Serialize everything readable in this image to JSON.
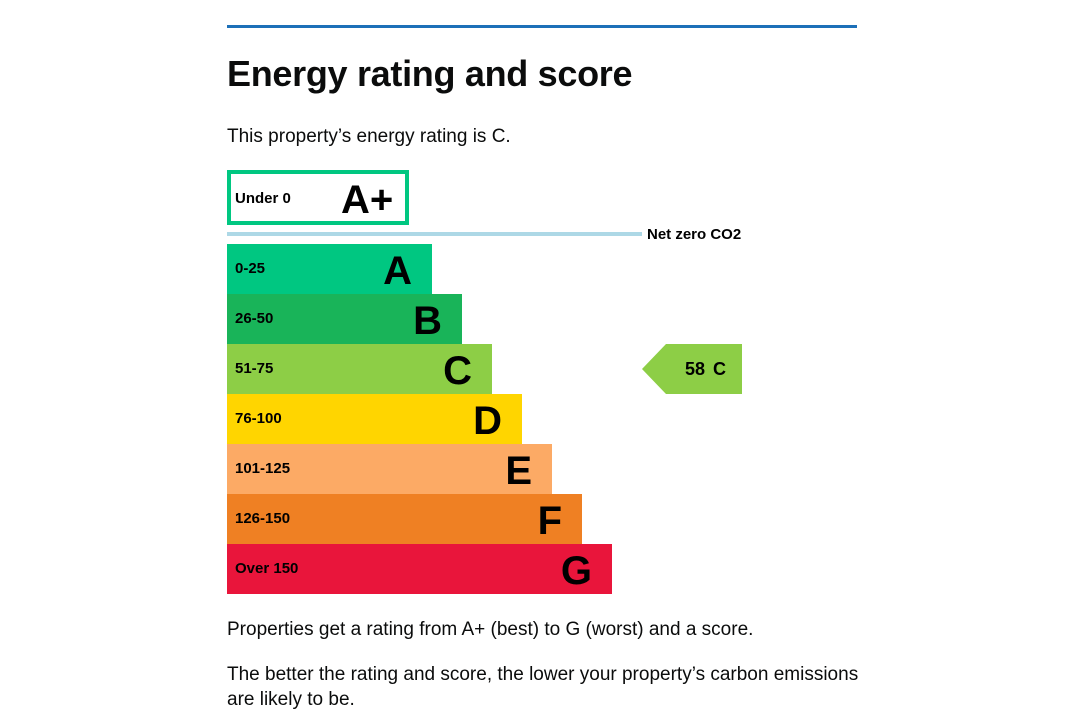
{
  "page": {
    "title": "Energy rating and score",
    "intro": "This property’s energy rating is C.",
    "footer_line1": "Properties get a rating from A+ (best) to G (worst) and a score.",
    "footer_line2": "The better the rating and score, the lower your property’s carbon emissions are likely to be."
  },
  "chart_data": {
    "type": "bar",
    "bands": [
      {
        "letter": "A+",
        "range": "Under 0",
        "color": "#ffffff",
        "border": "#00c781"
      },
      {
        "letter": "A",
        "range": "0-25",
        "color": "#00c781"
      },
      {
        "letter": "B",
        "range": "26-50",
        "color": "#19b459"
      },
      {
        "letter": "C",
        "range": "51-75",
        "color": "#8dce46"
      },
      {
        "letter": "D",
        "range": "76-100",
        "color": "#ffd500"
      },
      {
        "letter": "E",
        "range": "101-125",
        "color": "#fcaa65"
      },
      {
        "letter": "F",
        "range": "126-150",
        "color": "#ef8023"
      },
      {
        "letter": "G",
        "range": "Over 150",
        "color": "#e9153b"
      }
    ],
    "net_zero_label": "Net zero CO2",
    "net_zero_color": "#add8e6",
    "current": {
      "score": "58",
      "letter": "C",
      "color": "#8dce46"
    }
  }
}
